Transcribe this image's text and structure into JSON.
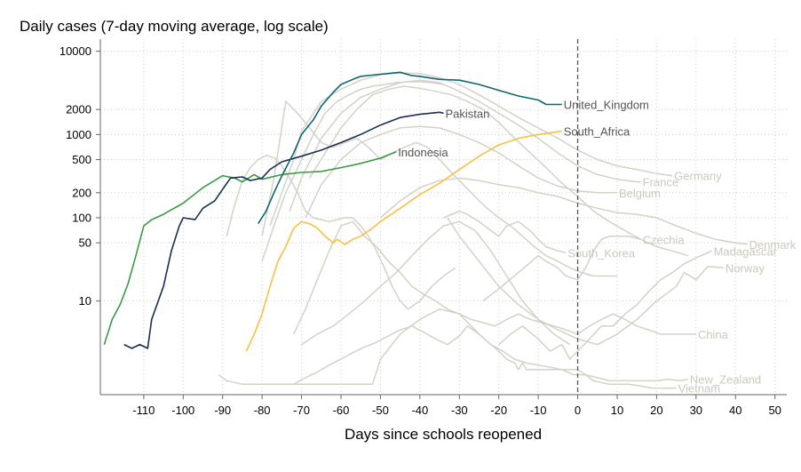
{
  "chart_data": {
    "type": "line",
    "ylabel": "Daily cases (7-day moving average, log scale)",
    "xlabel": "Days since schools reopened",
    "y_scale": "log",
    "xlim": [
      -121,
      53
    ],
    "ylim": [
      0.75,
      14000
    ],
    "x_ticks": [
      "-110",
      "-100",
      "-90",
      "-80",
      "-70",
      "-60",
      "-50",
      "-40",
      "-30",
      "-20",
      "-10",
      "0",
      "10",
      "20",
      "30",
      "40",
      "50"
    ],
    "x_tick_values": [
      -110,
      -100,
      -90,
      -80,
      -70,
      -60,
      -50,
      -40,
      -30,
      -20,
      -10,
      0,
      10,
      20,
      30,
      40,
      50
    ],
    "y_ticks": [
      "10000",
      "2000",
      "1000",
      "500",
      "200",
      "100",
      "50",
      "10"
    ],
    "y_tick_values": [
      10000,
      2000,
      1000,
      500,
      200,
      100,
      50,
      10
    ],
    "grid": true,
    "reference_line_x": 0,
    "colors": {
      "United_Kingdom": "#0e6672",
      "Pakistan": "#1a2e52",
      "Indonesia": "#3a9a42",
      "South_Africa": "#f7c043",
      "background": "#d3d2c7",
      "axis": "#666666",
      "refline": "#555555"
    },
    "series": [
      {
        "name": "Indonesia",
        "highlight": true,
        "label_x": -46,
        "x": [
          -120,
          -118,
          -116,
          -114,
          -112,
          -110,
          -108,
          -105,
          -100,
          -95,
          -90,
          -87,
          -85,
          -82,
          -80,
          -75,
          -70,
          -65,
          -60,
          -55,
          -50,
          -46
        ],
        "y": [
          3,
          6,
          9,
          16,
          35,
          80,
          95,
          110,
          150,
          230,
          320,
          300,
          270,
          330,
          290,
          330,
          350,
          360,
          400,
          450,
          520,
          620
        ]
      },
      {
        "name": "Pakistan",
        "highlight": true,
        "label_x": -34,
        "x": [
          -115,
          -113,
          -111,
          -109,
          -108,
          -105,
          -103,
          -101,
          -100,
          -97,
          -95,
          -92,
          -90,
          -88,
          -85,
          -83,
          -80,
          -78,
          -75,
          -70,
          -65,
          -60,
          -55,
          -50,
          -45,
          -40,
          -35,
          -34
        ],
        "y": [
          3,
          2.7,
          3,
          2.7,
          6,
          15,
          40,
          80,
          100,
          95,
          130,
          160,
          220,
          300,
          310,
          280,
          300,
          380,
          470,
          550,
          650,
          800,
          1000,
          1300,
          1600,
          1750,
          1850,
          1800
        ]
      },
      {
        "name": "United_Kingdom",
        "highlight": true,
        "label_x": -4,
        "x": [
          -81,
          -79,
          -77,
          -75,
          -72,
          -70,
          -67,
          -65,
          -62,
          -60,
          -57,
          -55,
          -50,
          -45,
          -42,
          -40,
          -35,
          -30,
          -25,
          -20,
          -15,
          -10,
          -8,
          -5,
          -4
        ],
        "y": [
          85,
          120,
          200,
          320,
          600,
          1000,
          1500,
          2200,
          3200,
          4000,
          4600,
          5000,
          5300,
          5600,
          5100,
          5000,
          4600,
          4500,
          4000,
          3400,
          2900,
          2600,
          2300,
          2300,
          2300
        ]
      },
      {
        "name": "South_Africa",
        "highlight": true,
        "label_x": -4,
        "x": [
          -84,
          -82,
          -80,
          -78,
          -76,
          -74,
          -72,
          -70,
          -68,
          -66,
          -64,
          -62,
          -61,
          -59,
          -57,
          -55,
          -52,
          -50,
          -45,
          -40,
          -35,
          -30,
          -25,
          -20,
          -15,
          -10,
          -5,
          -4
        ],
        "y": [
          2.5,
          4,
          7,
          15,
          30,
          45,
          75,
          90,
          85,
          75,
          60,
          50,
          55,
          48,
          55,
          60,
          75,
          90,
          130,
          190,
          260,
          380,
          550,
          750,
          900,
          1000,
          1080,
          1100
        ]
      },
      {
        "name": "Germany",
        "highlight": false,
        "label_x": 24,
        "x": [
          -78,
          -75,
          -72,
          -70,
          -65,
          -60,
          -55,
          -50,
          -45,
          -40,
          -35,
          -30,
          -25,
          -20,
          -15,
          -10,
          -5,
          0,
          5,
          10,
          15,
          20,
          24
        ],
        "y": [
          80,
          200,
          500,
          1100,
          2500,
          3500,
          4500,
          5200,
          5500,
          5400,
          4800,
          4000,
          3000,
          2200,
          1600,
          1200,
          900,
          650,
          500,
          420,
          380,
          340,
          320
        ]
      },
      {
        "name": "France",
        "highlight": false,
        "label_x": 16,
        "x": [
          -73,
          -70,
          -65,
          -60,
          -55,
          -50,
          -45,
          -40,
          -35,
          -30,
          -25,
          -20,
          -15,
          -10,
          -5,
          0,
          5,
          10,
          15,
          16
        ],
        "y": [
          120,
          300,
          900,
          1800,
          2800,
          3500,
          4200,
          4500,
          4200,
          3300,
          2500,
          1800,
          1300,
          900,
          600,
          420,
          330,
          290,
          270,
          270
        ]
      },
      {
        "name": "Belgium",
        "highlight": false,
        "label_x": 10,
        "x": [
          -69,
          -65,
          -60,
          -55,
          -50,
          -45,
          -40,
          -35,
          -30,
          -25,
          -20,
          -15,
          -10,
          -5,
          0,
          5,
          10
        ],
        "y": [
          100,
          250,
          500,
          800,
          1000,
          1200,
          1250,
          1200,
          1000,
          800,
          600,
          420,
          300,
          240,
          210,
          200,
          200
        ]
      },
      {
        "name": "Denmark",
        "highlight": false,
        "label_x": 43,
        "x": [
          -50,
          -45,
          -40,
          -35,
          -30,
          -25,
          -20,
          -15,
          -10,
          -5,
          0,
          5,
          10,
          15,
          20,
          25,
          30,
          35,
          40,
          43
        ],
        "y": [
          100,
          160,
          230,
          280,
          300,
          280,
          250,
          230,
          200,
          180,
          150,
          130,
          115,
          110,
          100,
          80,
          65,
          55,
          50,
          48
        ]
      },
      {
        "name": "Czechia",
        "highlight": false,
        "label_x": 16,
        "x": [
          -24,
          -20,
          -15,
          -10,
          -8,
          -5,
          -3,
          0,
          2,
          4,
          6,
          8,
          10,
          13,
          16
        ],
        "y": [
          10,
          14,
          22,
          35,
          30,
          25,
          20,
          18,
          25,
          40,
          55,
          60,
          60,
          60,
          55
        ]
      },
      {
        "name": "South_Korea",
        "highlight": false,
        "label_x": -3,
        "x": [
          -34,
          -30,
          -28,
          -25,
          -22,
          -20,
          -18,
          -15,
          -12,
          -10,
          -8,
          -5,
          -3
        ],
        "y": [
          100,
          120,
          110,
          90,
          70,
          60,
          80,
          90,
          70,
          55,
          45,
          40,
          38
        ]
      },
      {
        "name": "Madagascar",
        "highlight": false,
        "label_x": 34,
        "x": [
          -20,
          -17,
          -14,
          -10,
          -7,
          -4,
          -2,
          0,
          3,
          6,
          9,
          12,
          15,
          18,
          21,
          24,
          27,
          30,
          34
        ],
        "y": [
          3,
          4,
          5,
          3.5,
          2.5,
          3,
          2,
          2.5,
          3.5,
          5,
          5,
          7,
          9,
          13,
          18,
          22,
          28,
          33,
          40
        ]
      },
      {
        "name": "Norway",
        "highlight": false,
        "label_x": 37,
        "x": [
          -33,
          -30,
          -25,
          -20,
          -15,
          -10,
          -5,
          0,
          5,
          10,
          15,
          20,
          25,
          27,
          30,
          33,
          37
        ],
        "y": [
          100,
          60,
          30,
          15,
          9,
          6,
          4.5,
          3.5,
          3,
          4,
          6,
          10,
          15,
          22,
          18,
          26,
          25
        ]
      },
      {
        "name": "China",
        "highlight": false,
        "label_x": 30,
        "x": [
          -72,
          -69,
          -66,
          -63,
          -60,
          -57,
          -54,
          -51,
          -48,
          -45,
          -42,
          -39,
          -36,
          -33,
          -30,
          -27,
          -24,
          -21,
          -18,
          -15,
          -12,
          -9,
          -6,
          -3,
          0,
          3,
          6,
          9,
          12,
          15,
          18,
          21,
          24,
          27,
          30
        ],
        "y": [
          4,
          8,
          18,
          40,
          80,
          90,
          60,
          45,
          30,
          22,
          15,
          12,
          10,
          8,
          7,
          6,
          5.5,
          5,
          6,
          7,
          6,
          5.5,
          5,
          4.5,
          4,
          5,
          6,
          7,
          6,
          5,
          4.5,
          4,
          4,
          4,
          4
        ]
      },
      {
        "name": "New_Zealand",
        "highlight": false,
        "label_x": 28,
        "x": [
          -72,
          -69,
          -66,
          -63,
          -60,
          -57,
          -54,
          -51,
          -48,
          -45,
          -42,
          -39,
          -36,
          -33,
          -30,
          -28,
          -25,
          -22,
          -19,
          -16,
          -13,
          -10,
          -7,
          -4,
          -1,
          2,
          5,
          8,
          11,
          14,
          17,
          20,
          23,
          26,
          28
        ],
        "y": [
          1,
          1.2,
          1.4,
          1.7,
          2,
          2.4,
          2.8,
          3.2,
          3.8,
          4.5,
          5,
          4.2,
          3.5,
          3,
          3.8,
          5,
          4,
          3,
          2.5,
          2,
          1.8,
          1.7,
          1.6,
          1.5,
          1.3,
          1.3,
          1.2,
          1.1,
          1.1,
          1.1,
          1.1,
          1.1,
          1.15,
          1.1,
          1.15
        ]
      },
      {
        "name": "Vietnam",
        "highlight": false,
        "label_x": 25,
        "x": [
          -91,
          -89,
          -87,
          -85,
          -80,
          -75,
          -70,
          -65,
          -60,
          -55,
          -52,
          -50,
          -45,
          -40,
          -35,
          -30,
          -27,
          -25,
          -22,
          -20,
          -18,
          -16,
          -15,
          -14,
          -13,
          -11,
          -10,
          -8,
          -6,
          -4,
          -2,
          0,
          2,
          4,
          6,
          8,
          10,
          13,
          16,
          19,
          20,
          22,
          25
        ],
        "y": [
          1.3,
          1.1,
          1.05,
          1,
          1,
          1,
          1,
          1,
          1,
          1,
          1,
          2,
          4,
          6,
          8,
          7,
          5,
          4,
          3,
          2.5,
          2,
          1.8,
          1.5,
          1.8,
          1.5,
          1.5,
          1.5,
          1.5,
          1.5,
          1.5,
          1.5,
          1.5,
          1.3,
          1.1,
          1.05,
          1.0,
          1.0,
          1.0,
          0.95,
          0.9,
          0.9,
          0.9,
          0.9
        ]
      },
      {
        "name": "",
        "highlight": false,
        "label_x": null,
        "x": [
          -80,
          -77,
          -74,
          -70,
          -67,
          -64,
          -61,
          -58,
          -55,
          -52,
          -49,
          -46,
          -43,
          -40,
          -37,
          -34
        ],
        "y": [
          30,
          80,
          200,
          500,
          1000,
          1800,
          2500,
          3000,
          3500,
          3800,
          4000,
          4200,
          4300,
          4300,
          4200,
          4000
        ]
      },
      {
        "name": "",
        "highlight": false,
        "label_x": null,
        "x": [
          -89,
          -87,
          -85,
          -83,
          -81,
          -79,
          -77,
          -75,
          -73,
          -71,
          -69,
          -67,
          -65,
          -63,
          -61,
          -59,
          -57,
          -55,
          -53,
          -51,
          -49,
          -47,
          -45,
          -43,
          -40,
          -37,
          -34,
          -31
        ],
        "y": [
          60,
          140,
          280,
          400,
          500,
          560,
          530,
          420,
          300,
          200,
          120,
          100,
          95,
          90,
          95,
          100,
          100,
          80,
          60,
          40,
          25,
          15,
          10,
          8,
          10,
          15,
          20,
          25
        ]
      },
      {
        "name": "",
        "highlight": false,
        "label_x": null,
        "x": [
          -80,
          -77,
          -74,
          -71,
          -68,
          -65,
          -62,
          -59,
          -56,
          -53,
          -50,
          -47,
          -44,
          -41,
          -38,
          -35,
          -32,
          -29,
          -26,
          -23,
          -20,
          -17,
          -14,
          -11,
          -8,
          -5,
          -2,
          1,
          4,
          7,
          10
        ],
        "y": [
          60,
          300,
          2500,
          1800,
          1200,
          800,
          700,
          800,
          900,
          700,
          500,
          600,
          700,
          800,
          700,
          500,
          350,
          250,
          180,
          130,
          100,
          80,
          60,
          45,
          35,
          30,
          25,
          22,
          20,
          20,
          20
        ]
      },
      {
        "name": "",
        "highlight": false,
        "label_x": null,
        "x": [
          -70,
          -66,
          -62,
          -58,
          -54,
          -50,
          -46,
          -42,
          -38,
          -34,
          -30,
          -26,
          -22,
          -18,
          -14,
          -10,
          -6,
          -2
        ],
        "y": [
          3,
          4,
          5,
          7,
          10,
          15,
          22,
          35,
          55,
          80,
          90,
          70,
          40,
          20,
          10,
          6,
          4,
          3
        ]
      },
      {
        "name": "",
        "highlight": false,
        "label_x": null,
        "x": [
          -68,
          -64,
          -60,
          -56,
          -52,
          -48,
          -44,
          -40,
          -36,
          -32,
          -28,
          -24,
          -20,
          -16,
          -12,
          -8,
          -4,
          0,
          4,
          8,
          12,
          16,
          20,
          24,
          28
        ],
        "y": [
          300,
          600,
          1200,
          2000,
          3000,
          3500,
          3800,
          3600,
          3300,
          3000,
          2500,
          2000,
          1400,
          900,
          600,
          400,
          260,
          180,
          120,
          90,
          70,
          55,
          45,
          40,
          35
        ]
      }
    ]
  }
}
